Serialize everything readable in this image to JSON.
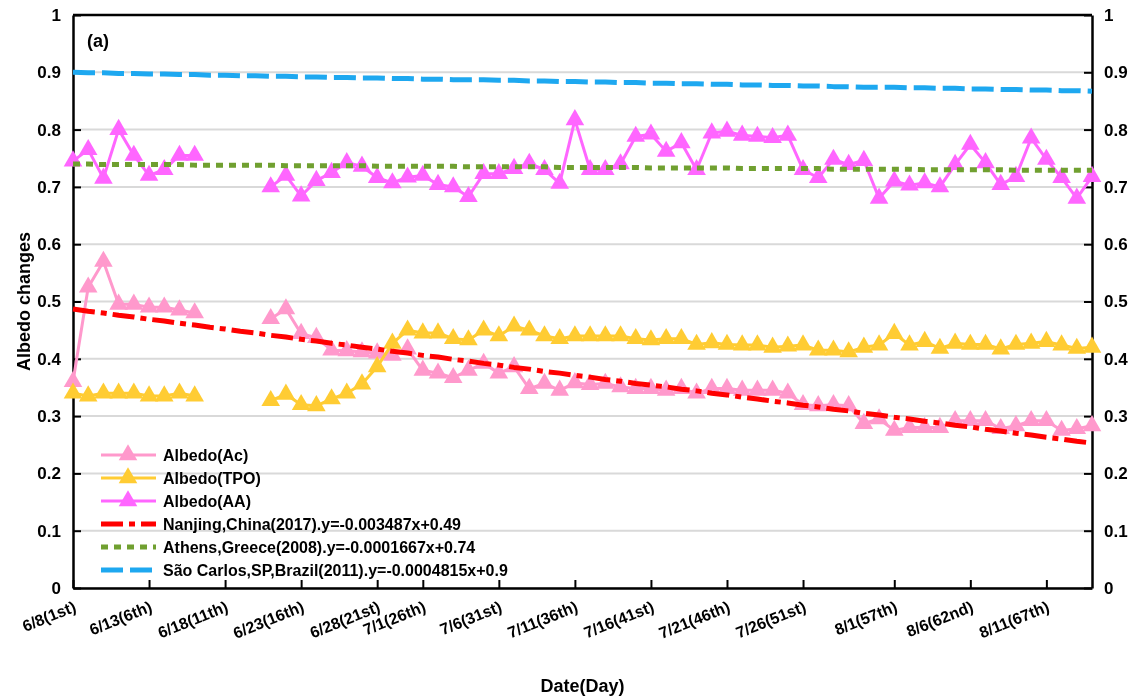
{
  "chart_data": {
    "type": "line",
    "xlabel": "Date(Day)",
    "ylabel": "Albedo changes",
    "categories": [
      "6/8(1st)",
      null,
      null,
      null,
      null,
      "6/13(6th)",
      null,
      null,
      null,
      null,
      "6/18(11th)",
      null,
      null,
      null,
      null,
      "6/23(16th)",
      null,
      null,
      null,
      null,
      "6/28(21st)",
      null,
      null,
      "7/1(26th)",
      null,
      null,
      null,
      null,
      "7/6(31st)",
      null,
      null,
      null,
      null,
      "7/11(36th)",
      null,
      null,
      null,
      null,
      "7/16(41st)",
      null,
      null,
      null,
      null,
      "7/21(46th)",
      null,
      null,
      null,
      null,
      "7/26(51st)",
      null,
      null,
      null,
      null,
      null,
      "8/1(57th)",
      null,
      null,
      null,
      null,
      "8/6(62nd)",
      null,
      null,
      null,
      null,
      "8/11(67th)",
      null,
      null,
      null
    ],
    "ylim": [
      0,
      1
    ],
    "yticks": [
      0,
      0.1,
      0.2,
      0.3,
      0.4,
      0.5,
      0.6,
      0.7,
      0.8,
      0.9,
      1
    ],
    "y2lim": [
      0,
      1
    ],
    "y2ticks": [
      0,
      0.1,
      0.2,
      0.3,
      0.4,
      0.5,
      0.6,
      0.7,
      0.8,
      0.9,
      1
    ],
    "grid": "y",
    "legend": "bottom left",
    "marker": "triangle",
    "annotations": [
      "(a)"
    ],
    "series": [
      {
        "name": "Albedo(Ac)",
        "color": "#ff99cc",
        "values": [
          0.36,
          0.525,
          0.57,
          0.495,
          0.495,
          0.49,
          0.49,
          0.485,
          0.48,
          null,
          null,
          null,
          null,
          0.47,
          0.487,
          0.444,
          0.437,
          0.415,
          0.414,
          0.412,
          0.41,
          0.406,
          0.417,
          0.38,
          0.375,
          0.367,
          0.38,
          0.392,
          0.375,
          0.386,
          0.348,
          0.357,
          0.345,
          0.358,
          0.355,
          0.357,
          0.351,
          0.348,
          0.348,
          0.345,
          0.348,
          0.34,
          0.348,
          0.348,
          0.345,
          0.345,
          0.345,
          0.34,
          0.32,
          0.318,
          0.32,
          0.318,
          0.287,
          0.295,
          0.275,
          0.28,
          0.28,
          0.28,
          0.292,
          0.292,
          0.292,
          0.278,
          0.283,
          0.292,
          0.292,
          0.275,
          0.278,
          0.283
        ]
      },
      {
        "name": "Albedo(TPO)",
        "color": "#ffcc33",
        "values": [
          0.34,
          0.335,
          0.34,
          0.34,
          0.34,
          0.335,
          0.335,
          0.34,
          0.335,
          null,
          null,
          null,
          null,
          0.327,
          0.338,
          0.32,
          0.318,
          0.33,
          0.34,
          0.356,
          0.386,
          0.427,
          0.45,
          0.445,
          0.445,
          0.435,
          0.433,
          0.45,
          0.44,
          0.457,
          0.45,
          0.44,
          0.435,
          0.44,
          0.44,
          0.44,
          0.44,
          0.435,
          0.433,
          0.435,
          0.435,
          0.425,
          0.428,
          0.425,
          0.424,
          0.424,
          0.42,
          0.422,
          0.424,
          0.415,
          0.415,
          0.412,
          0.42,
          0.424,
          0.444,
          0.424,
          0.43,
          0.418,
          0.427,
          0.425,
          0.425,
          0.417,
          0.425,
          0.427,
          0.43,
          0.424,
          0.418,
          0.42
        ]
      },
      {
        "name": "Albedo(AA)",
        "color": "#ff66ff",
        "values": [
          0.745,
          0.765,
          0.715,
          0.8,
          0.755,
          0.72,
          0.73,
          0.755,
          0.755,
          null,
          null,
          null,
          null,
          0.7,
          0.72,
          0.684,
          0.711,
          0.725,
          0.742,
          0.736,
          0.716,
          0.707,
          0.717,
          0.72,
          0.704,
          0.7,
          0.683,
          0.723,
          0.723,
          0.732,
          0.741,
          0.73,
          0.706,
          0.817,
          0.73,
          0.73,
          0.74,
          0.788,
          0.792,
          0.762,
          0.777,
          0.73,
          0.794,
          0.797,
          0.79,
          0.788,
          0.786,
          0.79,
          0.73,
          0.716,
          0.748,
          0.739,
          0.746,
          0.68,
          0.71,
          0.703,
          0.707,
          0.7,
          0.739,
          0.774,
          0.742,
          0.704,
          0.718,
          0.785,
          0.748,
          0.716,
          0.68,
          0.718
        ]
      },
      {
        "name": "Nanjing,China(2017).y=-0.003487x+0.49",
        "color": "#ff0000",
        "marker": "none",
        "line_style": "dashed",
        "values": [
          0.487,
          0.483,
          0.48,
          0.476,
          0.473,
          0.469,
          0.466,
          0.462,
          0.459,
          0.455,
          0.452,
          0.448,
          0.445,
          0.441,
          0.438,
          0.434,
          0.431,
          0.427,
          0.424,
          0.42,
          0.417,
          0.413,
          0.41,
          0.406,
          0.403,
          0.399,
          0.396,
          0.392,
          0.389,
          0.385,
          0.382,
          0.378,
          0.375,
          0.371,
          0.368,
          0.364,
          0.361,
          0.357,
          0.354,
          0.351,
          0.347,
          0.344,
          0.34,
          0.337,
          0.333,
          0.33,
          0.326,
          0.323,
          0.319,
          0.316,
          0.312,
          0.309,
          0.305,
          0.302,
          0.298,
          0.295,
          0.291,
          0.288,
          0.284,
          0.281,
          0.277,
          0.274,
          0.27,
          0.267,
          0.263,
          0.26,
          0.256,
          0.253
        ]
      },
      {
        "name": "Athens,Greece(2008).y=-0.0001667x+0.74",
        "color": "#70a030",
        "marker": "none",
        "line_style": "dotted",
        "values": [
          0.74,
          0.74,
          0.739,
          0.739,
          0.739,
          0.739,
          0.739,
          0.739,
          0.738,
          0.738,
          0.738,
          0.738,
          0.738,
          0.738,
          0.737,
          0.737,
          0.737,
          0.737,
          0.737,
          0.737,
          0.736,
          0.736,
          0.736,
          0.736,
          0.736,
          0.736,
          0.735,
          0.735,
          0.735,
          0.735,
          0.735,
          0.735,
          0.734,
          0.734,
          0.734,
          0.734,
          0.734,
          0.734,
          0.733,
          0.733,
          0.733,
          0.733,
          0.733,
          0.733,
          0.732,
          0.732,
          0.732,
          0.732,
          0.732,
          0.732,
          0.731,
          0.731,
          0.731,
          0.731,
          0.731,
          0.731,
          0.73,
          0.73,
          0.73,
          0.73,
          0.73,
          0.73,
          0.729,
          0.729,
          0.729,
          0.729,
          0.729,
          0.729
        ]
      },
      {
        "name": "São Carlos,SP,Brazil(2011).y=-0.0004815x+0.9",
        "color": "#1ea8f0",
        "marker": "none",
        "line_style": "dashed",
        "values": [
          0.9,
          0.899,
          0.899,
          0.898,
          0.898,
          0.897,
          0.897,
          0.896,
          0.896,
          0.895,
          0.895,
          0.894,
          0.894,
          0.893,
          0.893,
          0.892,
          0.892,
          0.891,
          0.891,
          0.89,
          0.89,
          0.889,
          0.889,
          0.888,
          0.888,
          0.887,
          0.887,
          0.887,
          0.886,
          0.886,
          0.885,
          0.885,
          0.884,
          0.884,
          0.883,
          0.883,
          0.882,
          0.882,
          0.881,
          0.881,
          0.88,
          0.88,
          0.879,
          0.879,
          0.878,
          0.878,
          0.877,
          0.877,
          0.876,
          0.876,
          0.875,
          0.875,
          0.874,
          0.874,
          0.874,
          0.873,
          0.873,
          0.872,
          0.872,
          0.871,
          0.871,
          0.87,
          0.87,
          0.869,
          0.869,
          0.868,
          0.868,
          0.867
        ]
      }
    ]
  }
}
